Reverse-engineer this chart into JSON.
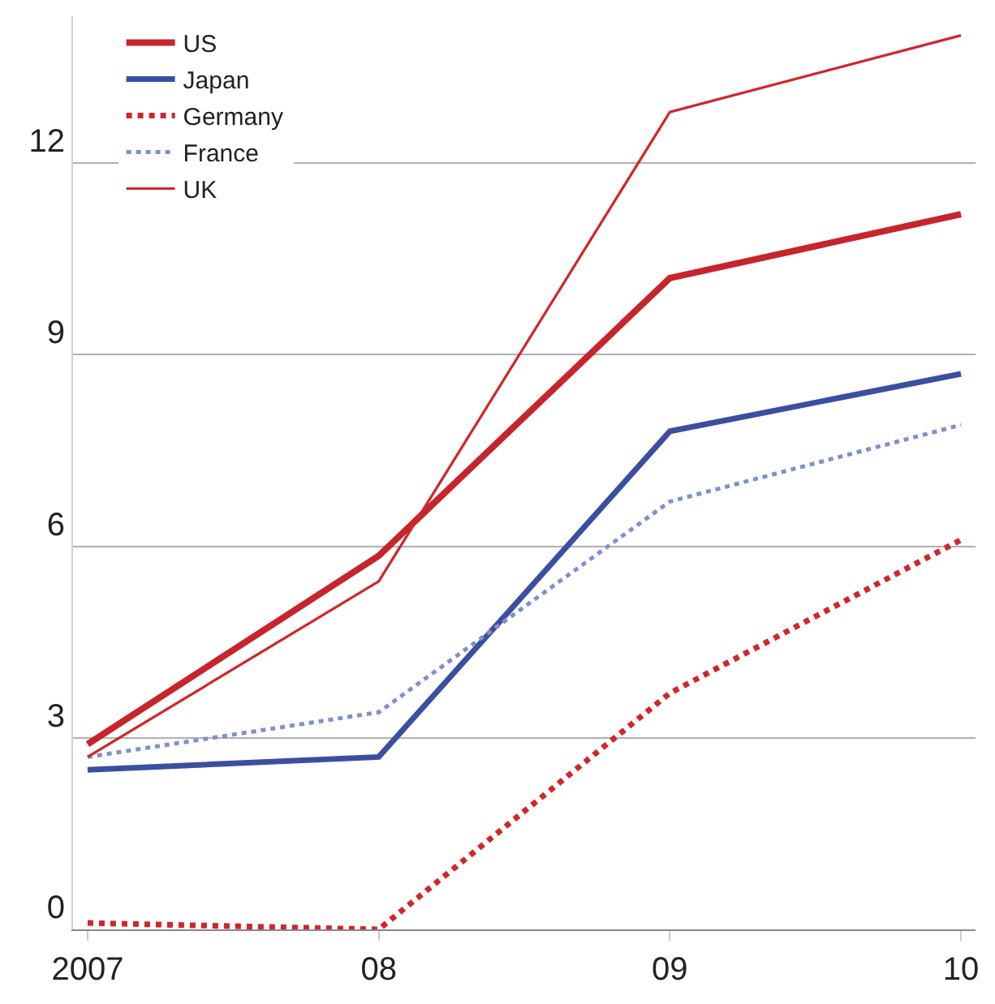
{
  "chart_data": {
    "type": "line",
    "categories": [
      "2007",
      "08",
      "09",
      "10"
    ],
    "series": [
      {
        "name": "US",
        "color": "#c8242b",
        "values": [
          2.9,
          5.85,
          10.2,
          11.2
        ],
        "line_style": "solid"
      },
      {
        "name": "Japan",
        "color": "#3b4fa0",
        "values": [
          2.5,
          2.7,
          7.8,
          8.7
        ],
        "line_style": "solid"
      },
      {
        "name": "Germany",
        "color": "#d0262b",
        "values": [
          0.1,
          0,
          3.7,
          6.1
        ],
        "line_style": "dotted"
      },
      {
        "name": "France",
        "color": "#7f8fd0",
        "values": [
          2.7,
          3.4,
          6.7,
          7.9
        ],
        "line_style": "dotted"
      },
      {
        "name": "UK",
        "color": "#d0262b",
        "values": [
          2.7,
          5.45,
          12.8,
          14.0
        ],
        "line_style": "solid"
      }
    ],
    "ylim": [
      0,
      14.3
    ],
    "yticks": [
      0,
      3,
      6,
      9,
      12
    ],
    "grid": "y",
    "legend": "top left",
    "marker": "none"
  }
}
